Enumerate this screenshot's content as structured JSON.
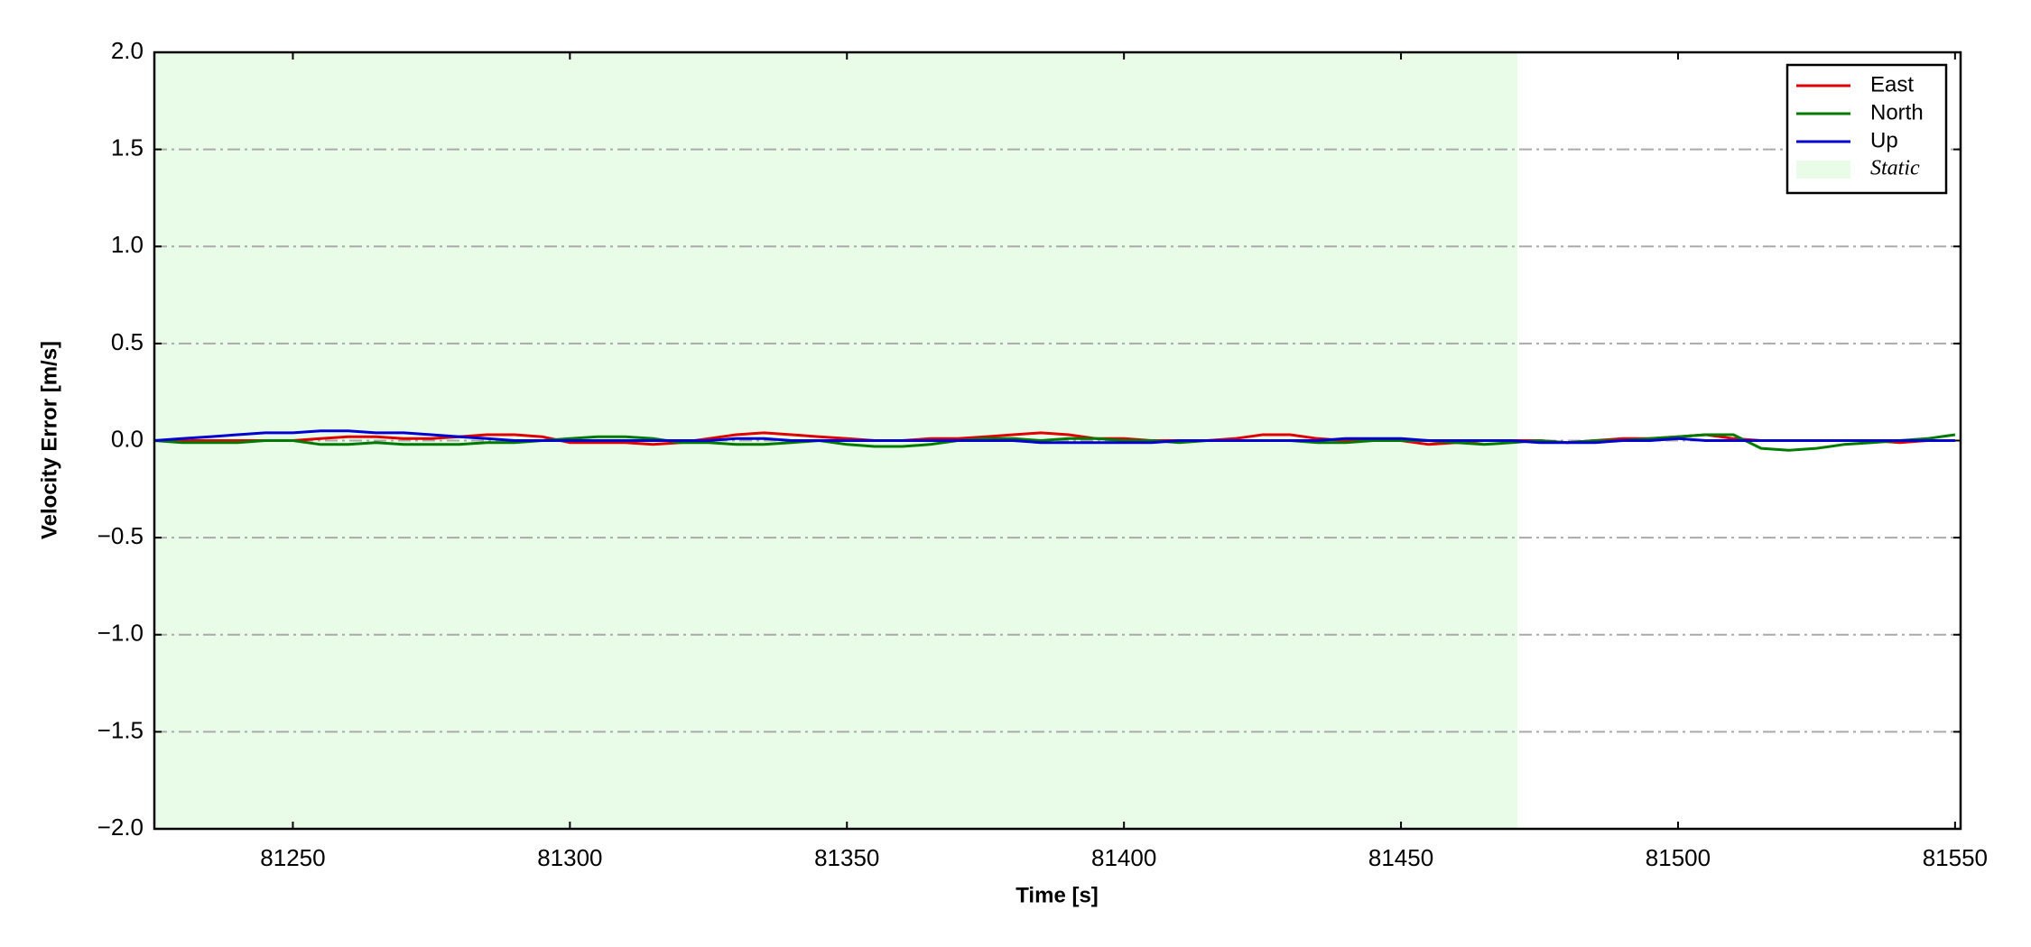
{
  "chart_data": {
    "type": "line",
    "xlabel": "Time [s]",
    "ylabel": "Velocity Error [m/s]",
    "x": [
      81225,
      81230,
      81235,
      81240,
      81245,
      81250,
      81255,
      81260,
      81265,
      81270,
      81275,
      81280,
      81285,
      81290,
      81295,
      81300,
      81305,
      81310,
      81315,
      81320,
      81325,
      81330,
      81335,
      81340,
      81345,
      81350,
      81355,
      81360,
      81365,
      81370,
      81375,
      81380,
      81385,
      81390,
      81395,
      81400,
      81405,
      81410,
      81415,
      81420,
      81425,
      81430,
      81435,
      81440,
      81445,
      81450,
      81455,
      81460,
      81465,
      81470,
      81475,
      81480,
      81485,
      81490,
      81495,
      81500,
      81505,
      81510,
      81515,
      81520,
      81525,
      81530,
      81535,
      81540,
      81545,
      81550
    ],
    "series": [
      {
        "name": "East",
        "color": "#e00000",
        "values": [
          0,
          0,
          0,
          0,
          0,
          0,
          0.01,
          0.02,
          0.02,
          0.01,
          0.01,
          0.02,
          0.03,
          0.03,
          0.02,
          -0.01,
          -0.01,
          -0.01,
          -0.02,
          -0.01,
          0.01,
          0.03,
          0.04,
          0.03,
          0.02,
          0.01,
          0,
          0,
          0.01,
          0.01,
          0.02,
          0.03,
          0.04,
          0.03,
          0.01,
          0.01,
          0,
          0,
          0,
          0.01,
          0.03,
          0.03,
          0.01,
          0,
          0,
          0,
          -0.02,
          -0.01,
          0,
          0,
          0,
          -0.01,
          0,
          0.01,
          0.01,
          0.02,
          0.03,
          0.01,
          0,
          0,
          0,
          0,
          0,
          -0.01,
          0,
          0
        ]
      },
      {
        "name": "North",
        "color": "#007a00",
        "values": [
          0,
          -0.01,
          -0.01,
          -0.01,
          0,
          0,
          -0.02,
          -0.02,
          -0.01,
          -0.02,
          -0.02,
          -0.02,
          -0.01,
          -0.01,
          0,
          0.01,
          0.02,
          0.02,
          0.01,
          -0.01,
          -0.01,
          -0.02,
          -0.02,
          -0.01,
          0,
          -0.02,
          -0.03,
          -0.03,
          -0.02,
          0,
          0.01,
          0.01,
          0,
          0.01,
          0.01,
          0,
          0,
          -0.01,
          0,
          0,
          0,
          0,
          -0.01,
          -0.01,
          0,
          0,
          0,
          -0.01,
          -0.02,
          -0.01,
          0,
          -0.01,
          0,
          0,
          0.01,
          0.02,
          0.03,
          0.03,
          -0.04,
          -0.05,
          -0.04,
          -0.02,
          -0.01,
          0,
          0.01,
          0.03
        ]
      },
      {
        "name": "Up",
        "color": "#0000d0",
        "values": [
          0,
          0.01,
          0.02,
          0.03,
          0.04,
          0.04,
          0.05,
          0.05,
          0.04,
          0.04,
          0.03,
          0.02,
          0.01,
          0,
          0,
          0,
          0,
          0,
          0,
          0,
          0,
          0.01,
          0.01,
          0,
          0,
          0,
          0,
          0,
          0,
          0,
          0,
          0,
          -0.01,
          -0.01,
          -0.01,
          -0.01,
          -0.01,
          0,
          0,
          0,
          0,
          0,
          0,
          0.01,
          0.01,
          0.01,
          0,
          0,
          0,
          0,
          -0.01,
          -0.01,
          -0.01,
          0,
          0,
          0.01,
          0,
          0,
          0,
          0,
          0,
          0,
          0,
          0,
          0,
          0
        ]
      }
    ],
    "shaded_regions": [
      {
        "name": "Static",
        "color": "#e8fce8",
        "x": [
          81225,
          81471
        ]
      }
    ],
    "xlim": [
      81225,
      81551
    ],
    "xticks": [
      81250,
      81300,
      81350,
      81400,
      81450,
      81500,
      81550
    ],
    "ylim": [
      -2,
      2
    ],
    "yticks": [
      {
        "value": -2,
        "label": "−2.0"
      },
      {
        "value": -1.5,
        "label": "−1.5"
      },
      {
        "value": -1,
        "label": "−1.0"
      },
      {
        "value": -0.5,
        "label": "−0.5"
      },
      {
        "value": 0,
        "label": "0.0"
      },
      {
        "value": 0.5,
        "label": "0.5"
      },
      {
        "value": 1,
        "label": "1.0"
      },
      {
        "value": 1.5,
        "label": "1.5"
      },
      {
        "value": 2,
        "label": "2.0"
      }
    ],
    "grid": true,
    "legend": "upper right"
  }
}
